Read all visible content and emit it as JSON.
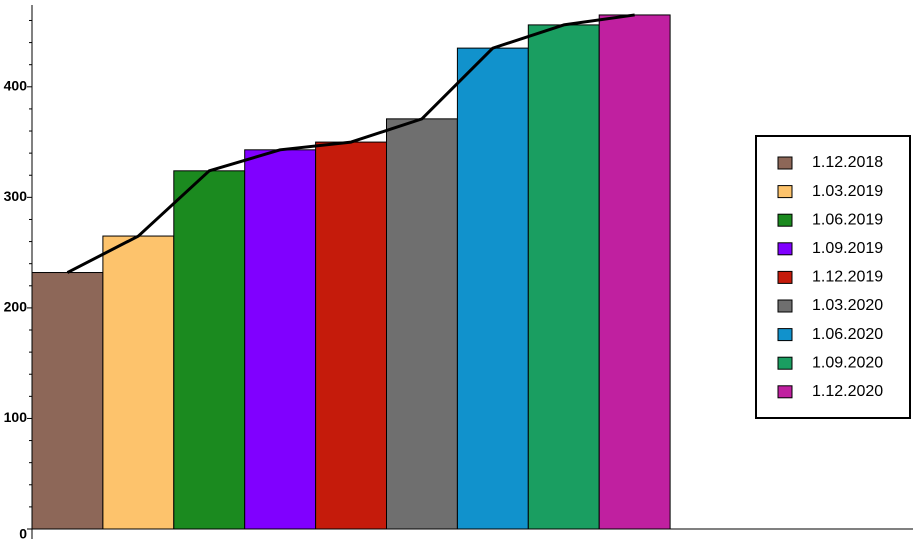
{
  "chart_data": {
    "type": "bar",
    "categories": [
      "1.12.2018",
      "1.03.2019",
      "1.06.2019",
      "1.09.2019",
      "1.12.2019",
      "1.03.2020",
      "1.06.2020",
      "1.09.2020",
      "1.12.2020"
    ],
    "values": [
      232,
      265,
      324,
      343,
      350,
      371,
      435,
      456,
      465
    ],
    "colors": [
      "#8d6758",
      "#fdc36c",
      "#1b8a1f",
      "#8000ff",
      "#c51b0b",
      "#6f6f6f",
      "#1192cc",
      "#1a9e61",
      "#c020a0"
    ],
    "line_color": "#000000",
    "ylim": [
      0,
      474
    ],
    "yticks": [
      0,
      100,
      200,
      300,
      400
    ],
    "minor_yticks": [
      20,
      40,
      60,
      80,
      120,
      140,
      160,
      180,
      220,
      240,
      260,
      280,
      320,
      340,
      360,
      380,
      420,
      440,
      460
    ],
    "legend": "right"
  }
}
